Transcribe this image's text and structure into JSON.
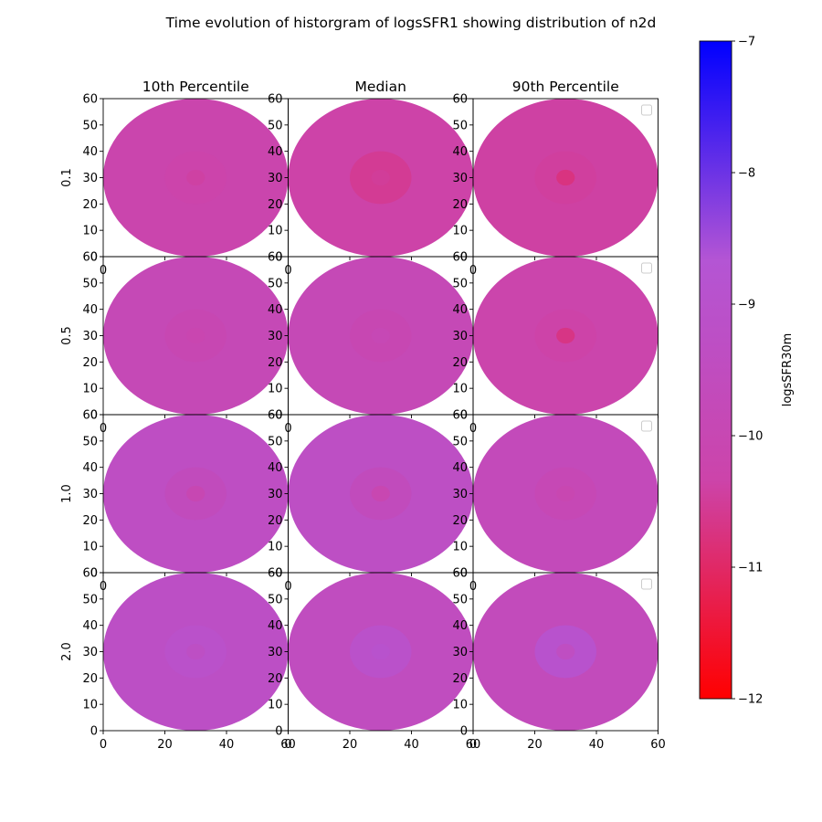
{
  "chart_data": {
    "type": "heatmap",
    "title": "Time evolution of historgram of logsSFR1 showing distribution of n2d",
    "column_titles": [
      "10th Percentile",
      "Median",
      "90th Percentile"
    ],
    "row_labels": [
      "0.1",
      "0.5",
      "1.0",
      "2.0"
    ],
    "xlim": [
      0,
      60
    ],
    "ylim": [
      0,
      60
    ],
    "x_ticks": [
      0,
      20,
      40,
      60
    ],
    "y_ticks": [
      0,
      10,
      20,
      30,
      40,
      50,
      60
    ],
    "colorbar": {
      "label": "logsSFR30m",
      "range": [
        -12,
        -7
      ],
      "ticks": [
        -12,
        -11,
        -10,
        -9,
        -8,
        -7
      ],
      "tick_labels": [
        "−12",
        "−11",
        "−10",
        "−9",
        "−8",
        "−7"
      ],
      "colormap_stops": [
        "#ff0000",
        "#cc44aa",
        "#b455d4",
        "#0000ff"
      ]
    },
    "legend": "empty legend box, upper-right of each 90th Percentile panel",
    "ring_radii": [
      30,
      10,
      3
    ],
    "panels": [
      {
        "row": "0.1",
        "column": "10th Percentile",
        "outer": -10.2,
        "middle": -10.3,
        "inner": -10.4
      },
      {
        "row": "0.1",
        "column": "Median",
        "outer": -10.35,
        "middle": -10.55,
        "inner": -10.5
      },
      {
        "row": "0.1",
        "column": "90th Percentile",
        "outer": -10.4,
        "middle": -10.45,
        "inner": -10.75
      },
      {
        "row": "0.5",
        "column": "10th Percentile",
        "outer": -9.85,
        "middle": -10.0,
        "inner": -10.1
      },
      {
        "row": "0.5",
        "column": "Median",
        "outer": -9.85,
        "middle": -10.0,
        "inner": -9.9
      },
      {
        "row": "0.5",
        "column": "90th Percentile",
        "outer": -10.25,
        "middle": -10.35,
        "inner": -10.7
      },
      {
        "row": "1.0",
        "column": "10th Percentile",
        "outer": -9.35,
        "middle": -9.6,
        "inner": -10.0
      },
      {
        "row": "1.0",
        "column": "Median",
        "outer": -9.3,
        "middle": -9.6,
        "inner": -10.05
      },
      {
        "row": "1.0",
        "column": "90th Percentile",
        "outer": -9.7,
        "middle": -9.9,
        "inner": -10.05
      },
      {
        "row": "2.0",
        "column": "10th Percentile",
        "outer": -9.25,
        "middle": -9.05,
        "inner": -9.3
      },
      {
        "row": "2.0",
        "column": "Median",
        "outer": -9.5,
        "middle": -9.05,
        "inner": -8.95
      },
      {
        "row": "2.0",
        "column": "90th Percentile",
        "outer": -9.65,
        "middle": -8.95,
        "inner": -9.4
      }
    ]
  }
}
